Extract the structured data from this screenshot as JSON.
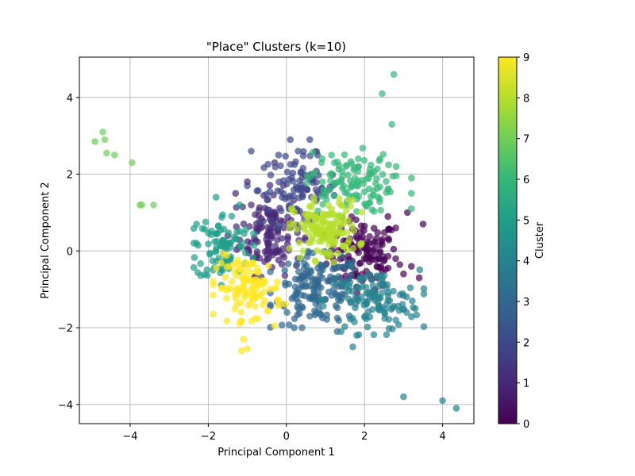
{
  "chart_data": {
    "type": "scatter",
    "title": "\"Place\" Clusters (k=10)",
    "xlabel": "Principal Component 1",
    "ylabel": "Principal Component 2",
    "xlim": [
      -5.3,
      4.8
    ],
    "ylim": [
      -4.5,
      5.05
    ],
    "xticks": [
      -4,
      -2,
      0,
      2,
      4
    ],
    "yticks": [
      -4,
      -2,
      0,
      2,
      4
    ],
    "grid": true,
    "colormap": "viridis",
    "marker_alpha": 0.7,
    "colorbar": {
      "label": "Cluster",
      "range": [
        0,
        9
      ],
      "ticks": [
        0,
        1,
        2,
        3,
        4,
        5,
        6,
        7,
        8,
        9
      ]
    },
    "cluster_colors": [
      "#440154",
      "#482878",
      "#3e4989",
      "#31688e",
      "#26828e",
      "#1f9e89",
      "#35b779",
      "#6ece58",
      "#b5de2b",
      "#fde725"
    ],
    "clusters": [
      {
        "cluster": 0,
        "center": [
          1.95,
          -0.1
        ],
        "spread": [
          0.45,
          0.45
        ],
        "count": 130,
        "extra_points": [
          [
            3.1,
            1.0
          ],
          [
            3.4,
            -0.7
          ],
          [
            3.5,
            0.7
          ],
          [
            2.6,
            0.9
          ],
          [
            2.8,
            0.6
          ],
          [
            3.2,
            -0.4
          ],
          [
            1.3,
            0.4
          ],
          [
            3.0,
            -0.6
          ]
        ]
      },
      {
        "cluster": 1,
        "center": [
          -0.4,
          0.5
        ],
        "spread": [
          0.4,
          0.55
        ],
        "count": 130,
        "extra_points": [
          [
            -1.3,
            1.5
          ],
          [
            -1.0,
            1.8
          ],
          [
            -0.3,
            2.3
          ],
          [
            -1.5,
            0.4
          ],
          [
            -0.9,
            1.2
          ]
        ]
      },
      {
        "cluster": 2,
        "center": [
          0.3,
          1.6
        ],
        "spread": [
          0.5,
          0.45
        ],
        "count": 100,
        "extra_points": [
          [
            -0.9,
            2.6
          ],
          [
            0.1,
            2.9
          ],
          [
            0.6,
            2.9
          ],
          [
            0.3,
            2.6
          ],
          [
            0.8,
            2.5
          ],
          [
            -0.2,
            2.5
          ],
          [
            -1.0,
            1.7
          ]
        ]
      },
      {
        "cluster": 3,
        "center": [
          0.8,
          -1.0
        ],
        "spread": [
          0.55,
          0.45
        ],
        "count": 150,
        "extra_points": [
          [
            0.4,
            -2.0
          ],
          [
            0.2,
            -2.0
          ],
          [
            0.6,
            -1.7
          ],
          [
            1.3,
            -2.1
          ],
          [
            -0.1,
            -1.4
          ]
        ]
      },
      {
        "cluster": 4,
        "center": [
          2.2,
          -1.3
        ],
        "spread": [
          0.6,
          0.4
        ],
        "count": 120,
        "extra_points": [
          [
            3.0,
            -3.8
          ],
          [
            4.0,
            -3.9
          ],
          [
            4.35,
            -4.1
          ],
          [
            3.3,
            -1.5
          ],
          [
            1.8,
            -2.2
          ],
          [
            1.7,
            -2.5
          ],
          [
            1.4,
            -2.1
          ],
          [
            2.8,
            -1.8
          ]
        ]
      },
      {
        "cluster": 5,
        "center": [
          -1.6,
          0.1
        ],
        "spread": [
          0.35,
          0.45
        ],
        "count": 90,
        "extra_points": [
          [
            -2.3,
            0.7
          ],
          [
            -1.8,
            1.4
          ],
          [
            -2.3,
            0.2
          ],
          [
            -1.2,
            1.2
          ]
        ]
      },
      {
        "cluster": 6,
        "center": [
          1.6,
          1.8
        ],
        "spread": [
          0.55,
          0.4
        ],
        "count": 110,
        "extra_points": [
          [
            2.75,
            4.6
          ],
          [
            2.45,
            4.1
          ],
          [
            2.7,
            3.3
          ],
          [
            2.4,
            2.4
          ],
          [
            3.2,
            1.9
          ],
          [
            3.2,
            1.5
          ],
          [
            3.2,
            1.1
          ],
          [
            2.6,
            1.6
          ],
          [
            0.9,
            2.3
          ]
        ]
      },
      {
        "cluster": 7,
        "center": [
          -4.3,
          2.3
        ],
        "spread": [
          0.0,
          0.0
        ],
        "count": 0,
        "extra_points": [
          [
            -4.9,
            2.85
          ],
          [
            -4.7,
            3.1
          ],
          [
            -4.65,
            2.9
          ],
          [
            -4.6,
            2.55
          ],
          [
            -4.4,
            2.5
          ],
          [
            -3.95,
            2.3
          ],
          [
            -3.75,
            1.2
          ],
          [
            -3.7,
            1.2
          ],
          [
            -3.4,
            1.2
          ]
        ]
      },
      {
        "cluster": 8,
        "center": [
          1.0,
          0.55
        ],
        "spread": [
          0.42,
          0.38
        ],
        "count": 150,
        "extra_points": []
      },
      {
        "cluster": 9,
        "center": [
          -0.95,
          -0.95
        ],
        "spread": [
          0.42,
          0.4
        ],
        "count": 110,
        "extra_points": [
          [
            -1.1,
            -2.3
          ],
          [
            -1.15,
            -2.6
          ],
          [
            -1.0,
            -2.55
          ],
          [
            -0.3,
            -1.95
          ],
          [
            -1.2,
            -1.9
          ],
          [
            -0.6,
            -1.4
          ],
          [
            -0.15,
            -1.4
          ]
        ]
      }
    ]
  }
}
